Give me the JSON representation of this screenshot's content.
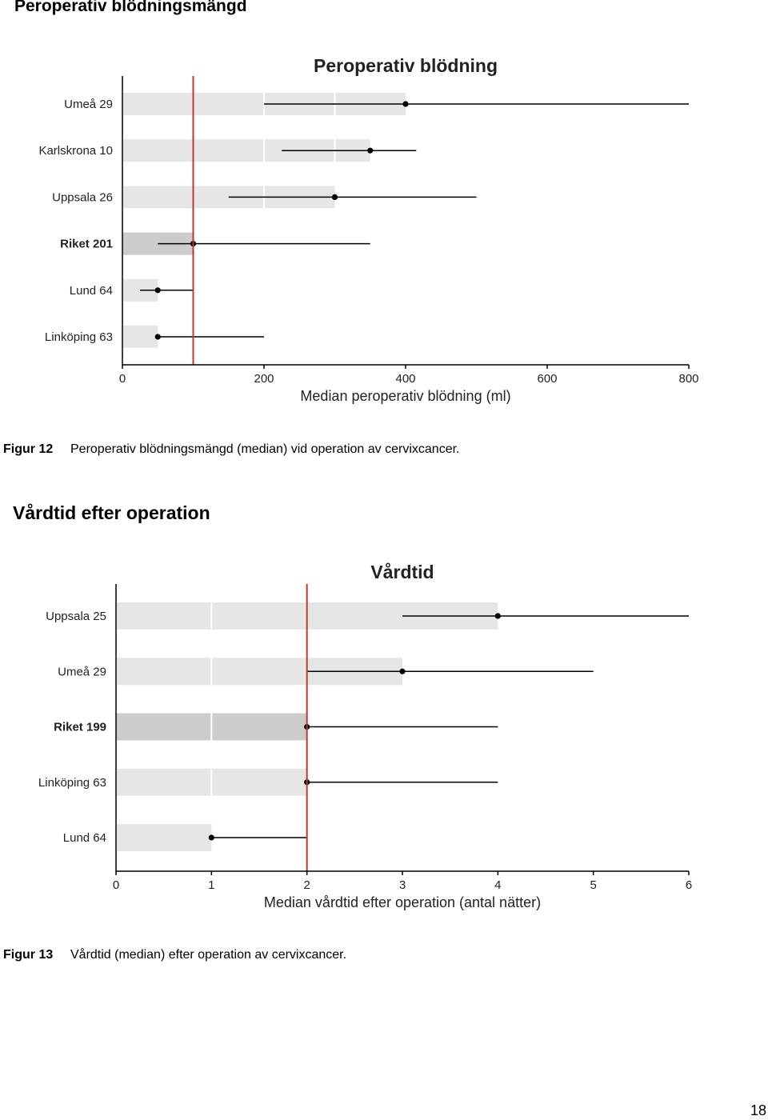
{
  "heading1": "Peroperativ blödningsmängd",
  "heading2": "Vårdtid efter operation",
  "figure12": {
    "label": "Figur 12",
    "text": "Peroperativ blödningsmängd (median) vid operation av cervixcancer."
  },
  "figure13": {
    "label": "Figur 13",
    "text": "Vårdtid (median) efter operation av cervixcancer."
  },
  "page_number": "18",
  "colors": {
    "bar": "#e6e6e6",
    "bar_highlight": "#cccccc",
    "reference_line": "#c0392b",
    "axis": "#000000"
  },
  "chart_data": [
    {
      "type": "bar",
      "title": "Peroperativ blödning",
      "xlabel": "Median peroperativ blödning (ml)",
      "ylabel": "",
      "xlim": [
        0,
        800
      ],
      "xticks": [
        0,
        200,
        400,
        600,
        800
      ],
      "reference_line": 100,
      "grid": false,
      "categories": [
        "Umeå 29",
        "Karlskrona 10",
        "Uppsala 26",
        "Riket 201",
        "Lund 64",
        "Linköping 63"
      ],
      "highlight": [
        "Riket 201"
      ],
      "values": [
        400,
        350,
        300,
        100,
        50,
        50
      ],
      "error_low": [
        200,
        225,
        150,
        50,
        25,
        50
      ],
      "error_high": [
        800,
        415,
        500,
        350,
        100,
        200
      ]
    },
    {
      "type": "bar",
      "title": "Vårdtid",
      "xlabel": "Median vårdtid efter operation (antal nätter)",
      "ylabel": "",
      "xlim": [
        0,
        6
      ],
      "xticks": [
        0,
        1,
        2,
        3,
        4,
        5,
        6
      ],
      "reference_line": 2,
      "grid": false,
      "categories": [
        "Uppsala 25",
        "Umeå 29",
        "Riket 199",
        "Linköping 63",
        "Lund 64"
      ],
      "highlight": [
        "Riket 199"
      ],
      "values": [
        4,
        3,
        2,
        2,
        1
      ],
      "error_low": [
        3,
        2,
        2,
        2,
        1
      ],
      "error_high": [
        6,
        5,
        4,
        4,
        2
      ]
    }
  ]
}
